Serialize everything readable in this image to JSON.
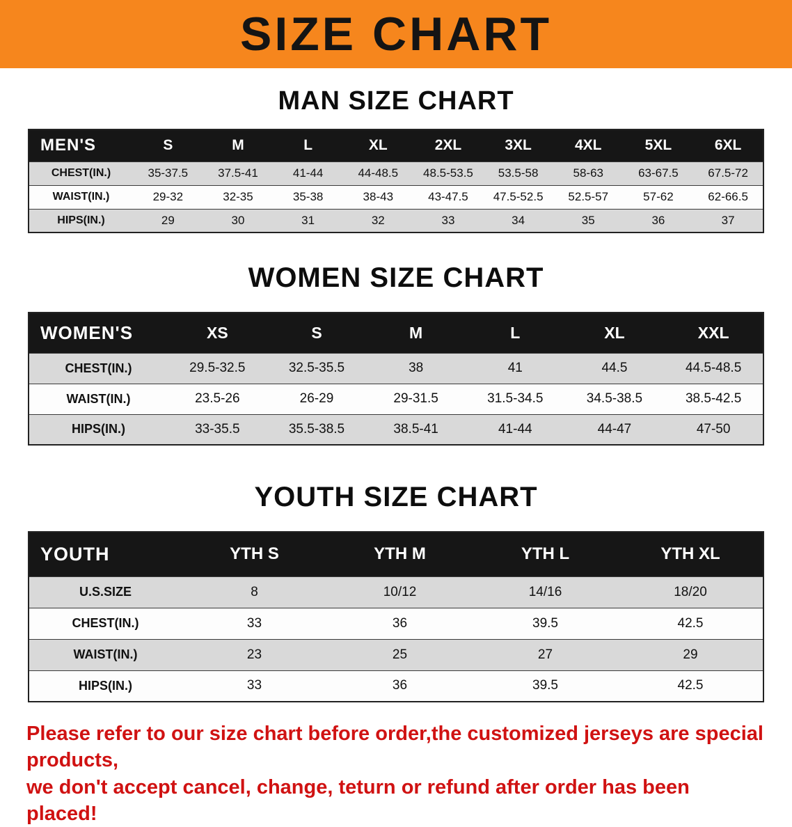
{
  "banner": {
    "title": "SIZE CHART",
    "bg_color": "#F6861D"
  },
  "sections": [
    {
      "title": "MAN SIZE CHART",
      "table": {
        "label": "MEN'S",
        "columns": [
          "S",
          "M",
          "L",
          "XL",
          "2XL",
          "3XL",
          "4XL",
          "5XL",
          "6XL"
        ],
        "rows": [
          {
            "label": "CHEST(IN.)",
            "values": [
              "35-37.5",
              "37.5-41",
              "41-44",
              "44-48.5",
              "48.5-53.5",
              "53.5-58",
              "58-63",
              "63-67.5",
              "67.5-72"
            ]
          },
          {
            "label": "WAIST(IN.)",
            "values": [
              "29-32",
              "32-35",
              "35-38",
              "38-43",
              "43-47.5",
              "47.5-52.5",
              "52.5-57",
              "57-62",
              "62-66.5"
            ]
          },
          {
            "label": "HIPS(IN.)",
            "values": [
              "29",
              "30",
              "31",
              "32",
              "33",
              "34",
              "35",
              "36",
              "37"
            ]
          }
        ]
      }
    },
    {
      "title": "WOMEN SIZE CHART",
      "table": {
        "label": "WOMEN'S",
        "columns": [
          "XS",
          "S",
          "M",
          "L",
          "XL",
          "XXL"
        ],
        "rows": [
          {
            "label": "CHEST(IN.)",
            "values": [
              "29.5-32.5",
              "32.5-35.5",
              "38",
              "41",
              "44.5",
              "44.5-48.5"
            ]
          },
          {
            "label": "WAIST(IN.)",
            "values": [
              "23.5-26",
              "26-29",
              "29-31.5",
              "31.5-34.5",
              "34.5-38.5",
              "38.5-42.5"
            ]
          },
          {
            "label": "HIPS(IN.)",
            "values": [
              "33-35.5",
              "35.5-38.5",
              "38.5-41",
              "41-44",
              "44-47",
              "47-50"
            ]
          }
        ]
      }
    },
    {
      "title": "YOUTH SIZE CHART",
      "table": {
        "label": "YOUTH",
        "columns": [
          "YTH S",
          "YTH M",
          "YTH L",
          "YTH XL"
        ],
        "rows": [
          {
            "label": "U.S.SIZE",
            "values": [
              "8",
              "10/12",
              "14/16",
              "18/20"
            ]
          },
          {
            "label": "CHEST(IN.)",
            "values": [
              "33",
              "36",
              "39.5",
              "42.5"
            ]
          },
          {
            "label": "WAIST(IN.)",
            "values": [
              "23",
              "25",
              "27",
              "29"
            ]
          },
          {
            "label": "HIPS(IN.)",
            "values": [
              "33",
              "36",
              "39.5",
              "42.5"
            ]
          }
        ]
      }
    }
  ],
  "footer": {
    "line1": "Please refer to our size chart before order,the customized jerseys are special products,",
    "line2": "we don't accept cancel, change, teturn or refund after order has been placed!"
  },
  "chart_data": [
    {
      "type": "table",
      "title": "MAN SIZE CHART",
      "columns": [
        "MEN'S",
        "S",
        "M",
        "L",
        "XL",
        "2XL",
        "3XL",
        "4XL",
        "5XL",
        "6XL"
      ],
      "rows": [
        [
          "CHEST(IN.)",
          "35-37.5",
          "37.5-41",
          "41-44",
          "44-48.5",
          "48.5-53.5",
          "53.5-58",
          "58-63",
          "63-67.5",
          "67.5-72"
        ],
        [
          "WAIST(IN.)",
          "29-32",
          "32-35",
          "35-38",
          "38-43",
          "43-47.5",
          "47.5-52.5",
          "52.5-57",
          "57-62",
          "62-66.5"
        ],
        [
          "HIPS(IN.)",
          "29",
          "30",
          "31",
          "32",
          "33",
          "34",
          "35",
          "36",
          "37"
        ]
      ]
    },
    {
      "type": "table",
      "title": "WOMEN SIZE CHART",
      "columns": [
        "WOMEN'S",
        "XS",
        "S",
        "M",
        "L",
        "XL",
        "XXL"
      ],
      "rows": [
        [
          "CHEST(IN.)",
          "29.5-32.5",
          "32.5-35.5",
          "38",
          "41",
          "44.5",
          "44.5-48.5"
        ],
        [
          "WAIST(IN.)",
          "23.5-26",
          "26-29",
          "29-31.5",
          "31.5-34.5",
          "34.5-38.5",
          "38.5-42.5"
        ],
        [
          "HIPS(IN.)",
          "33-35.5",
          "35.5-38.5",
          "38.5-41",
          "41-44",
          "44-47",
          "47-50"
        ]
      ]
    },
    {
      "type": "table",
      "title": "YOUTH SIZE CHART",
      "columns": [
        "YOUTH",
        "YTH S",
        "YTH M",
        "YTH L",
        "YTH XL"
      ],
      "rows": [
        [
          "U.S.SIZE",
          "8",
          "10/12",
          "14/16",
          "18/20"
        ],
        [
          "CHEST(IN.)",
          "33",
          "36",
          "39.5",
          "42.5"
        ],
        [
          "WAIST(IN.)",
          "23",
          "25",
          "27",
          "29"
        ],
        [
          "HIPS(IN.)",
          "33",
          "36",
          "39.5",
          "42.5"
        ]
      ]
    }
  ]
}
